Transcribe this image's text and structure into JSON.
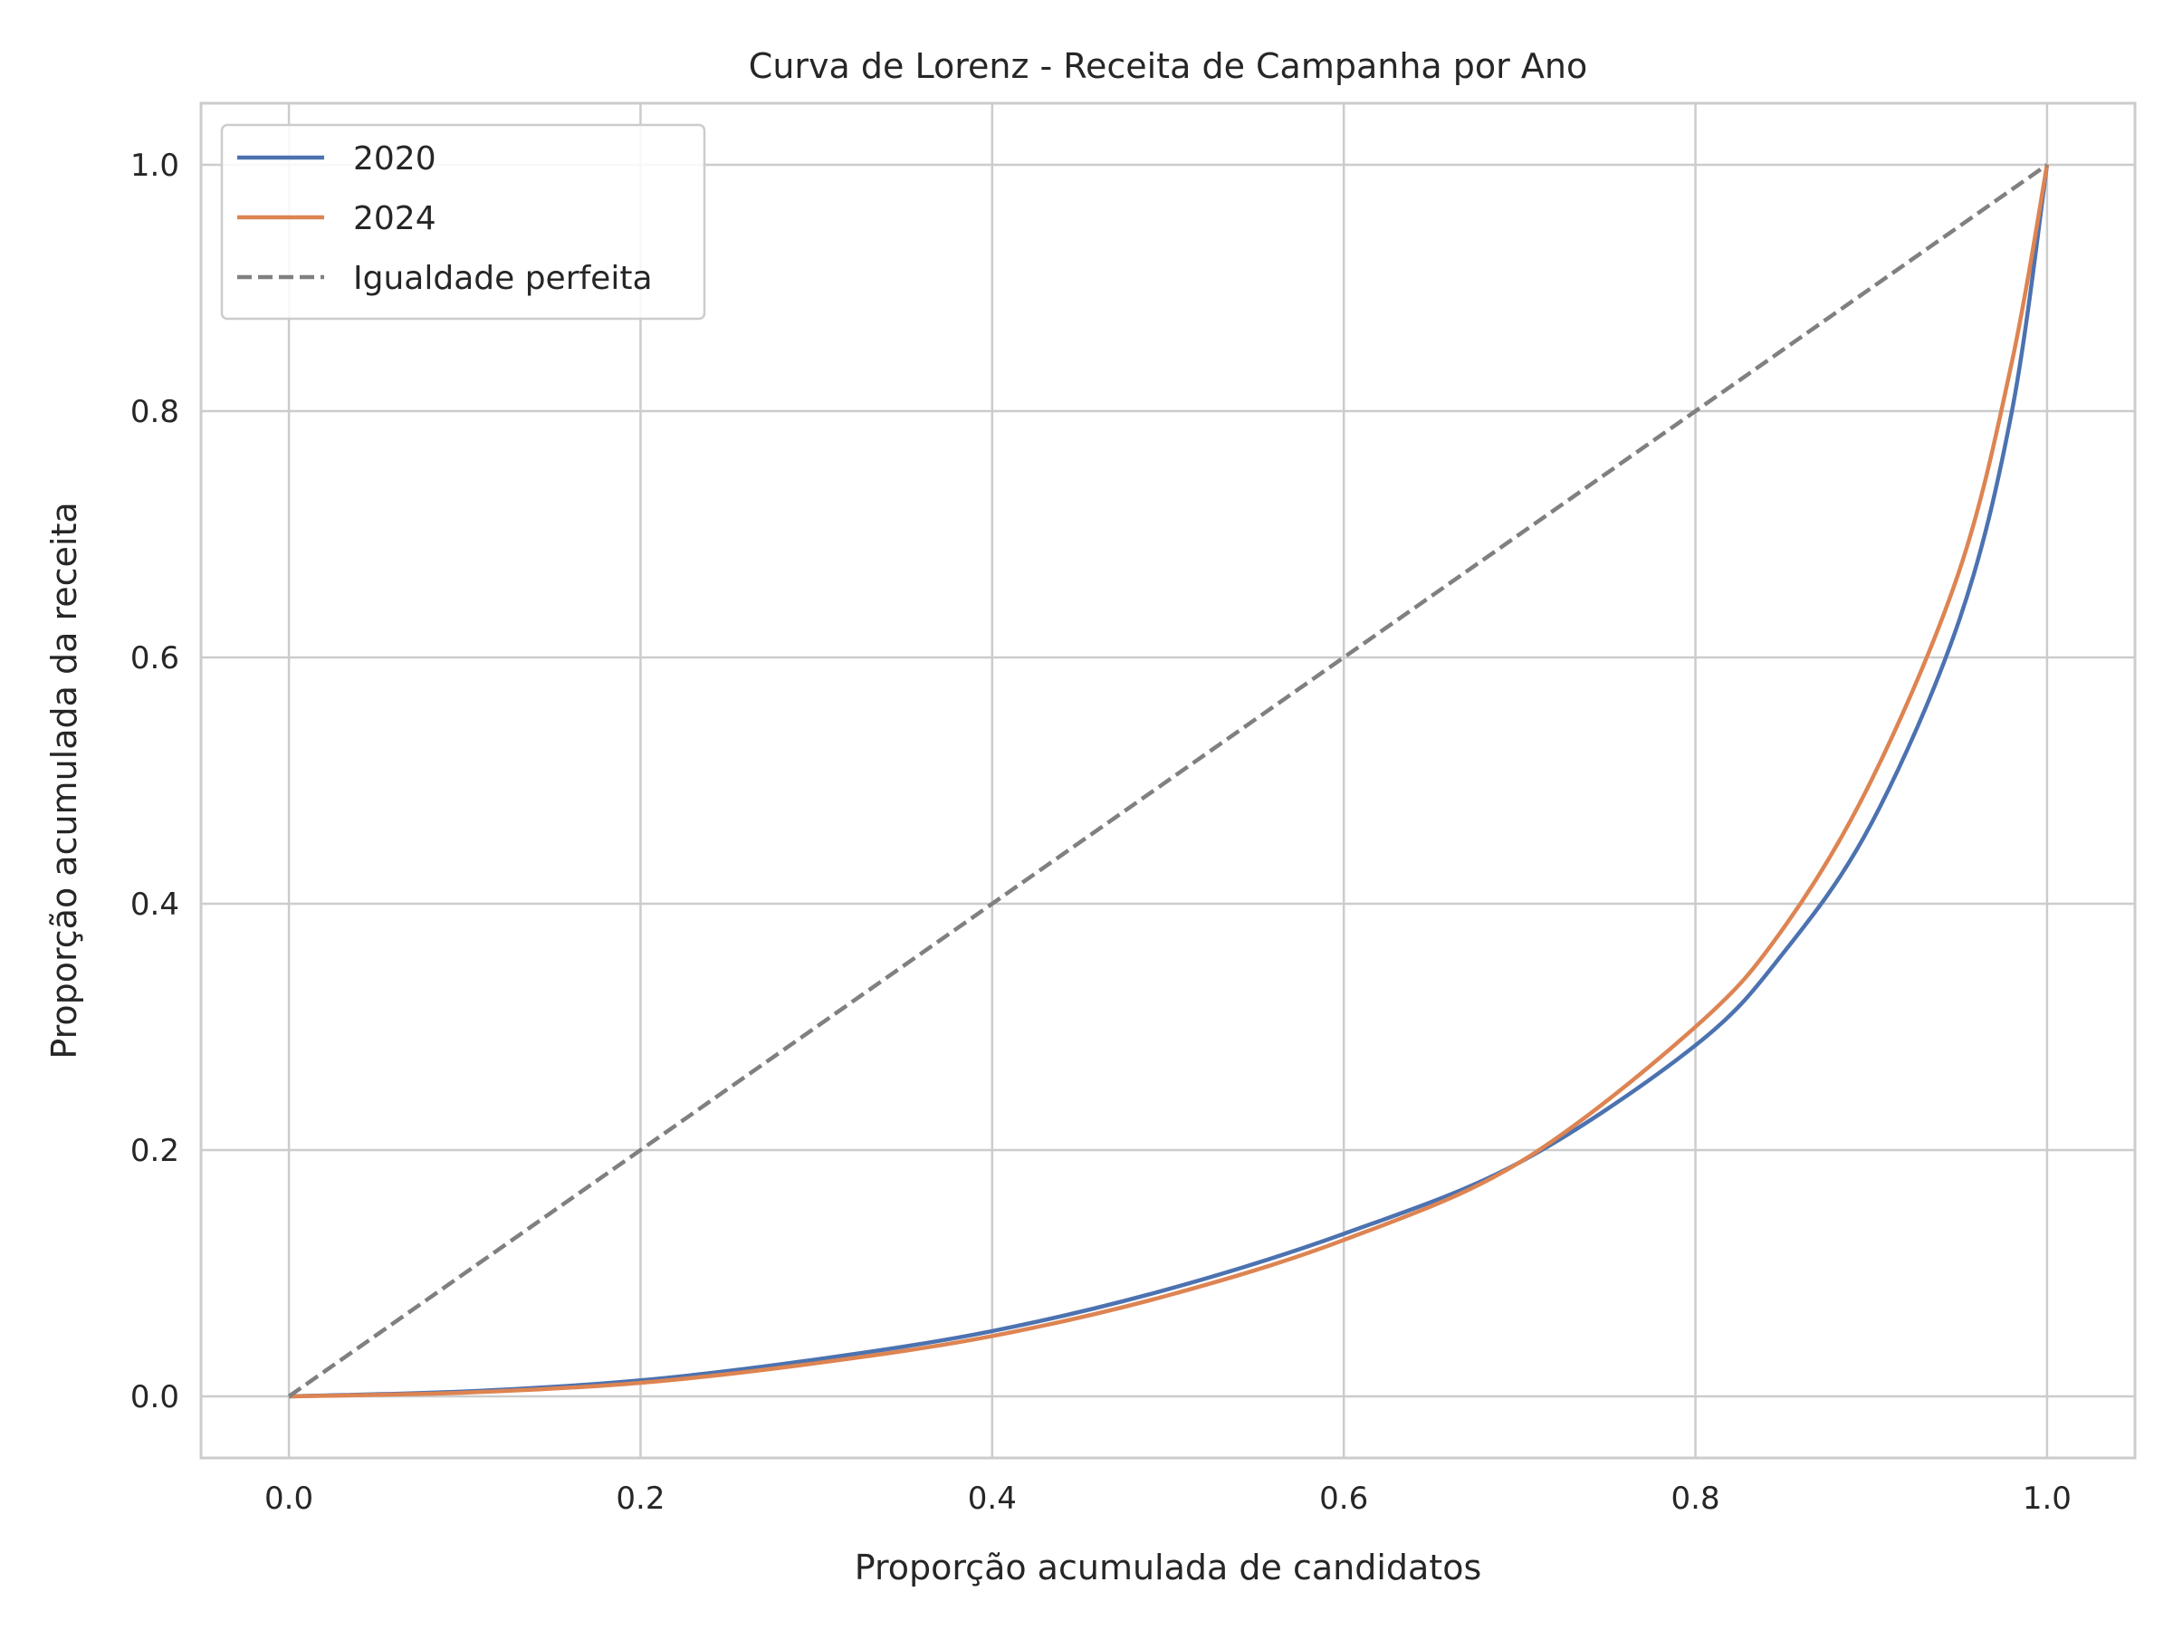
{
  "chart_data": {
    "type": "line",
    "title": "Curva de Lorenz - Receita de Campanha por Ano",
    "xlabel": "Proporção acumulada de candidatos",
    "ylabel": "Proporção acumulada da receita",
    "xlim": [
      -0.05,
      1.05
    ],
    "ylim": [
      -0.05,
      1.05
    ],
    "xticks": [
      0.0,
      0.2,
      0.4,
      0.6,
      0.8,
      1.0
    ],
    "xtick_labels": [
      "0.0",
      "0.2",
      "0.4",
      "0.6",
      "0.8",
      "1.0"
    ],
    "yticks": [
      0.0,
      0.2,
      0.4,
      0.6,
      0.8,
      1.0
    ],
    "ytick_labels": [
      "0.0",
      "0.2",
      "0.4",
      "0.6",
      "0.8",
      "1.0"
    ],
    "grid": true,
    "legend_position": "top-left",
    "series": [
      {
        "name": "2020",
        "color": "#4c72b0",
        "style": "solid",
        "x": [
          0.0,
          0.1,
          0.2,
          0.3,
          0.4,
          0.5,
          0.6,
          0.7,
          0.8,
          0.85,
          0.9,
          0.95,
          0.98,
          1.0
        ],
        "y": [
          0.0,
          0.004,
          0.013,
          0.03,
          0.053,
          0.087,
          0.132,
          0.19,
          0.285,
          0.36,
          0.465,
          0.63,
          0.8,
          1.0
        ]
      },
      {
        "name": "2024",
        "color": "#dd8452",
        "style": "solid",
        "x": [
          0.0,
          0.1,
          0.2,
          0.3,
          0.4,
          0.5,
          0.6,
          0.7,
          0.8,
          0.85,
          0.9,
          0.95,
          0.98,
          1.0
        ],
        "y": [
          0.0,
          0.003,
          0.011,
          0.027,
          0.049,
          0.082,
          0.127,
          0.19,
          0.3,
          0.38,
          0.5,
          0.67,
          0.84,
          1.0
        ]
      },
      {
        "name": "Igualdade perfeita",
        "color": "#808080",
        "style": "dashed",
        "x": [
          0.0,
          1.0
        ],
        "y": [
          0.0,
          1.0
        ]
      }
    ]
  }
}
